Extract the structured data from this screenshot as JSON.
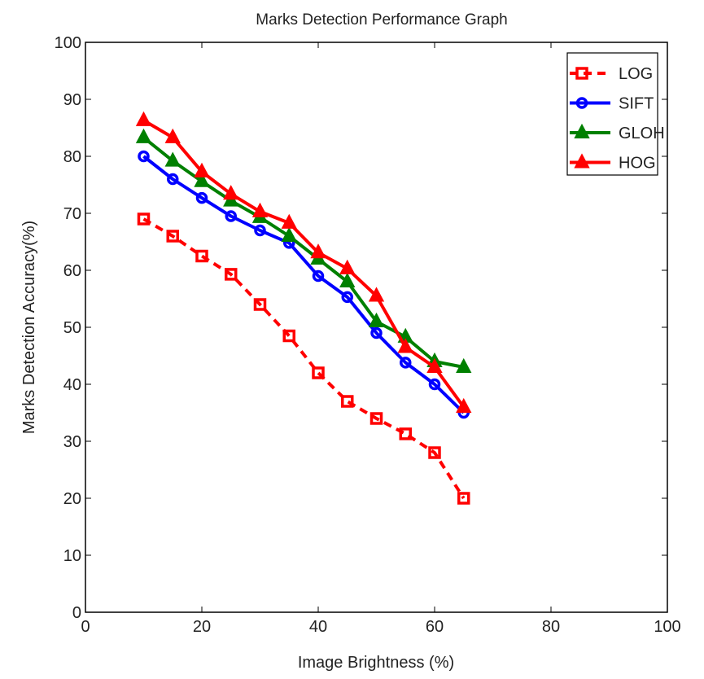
{
  "chart_data": {
    "type": "line",
    "title": "Marks Detection Performance Graph",
    "xlabel": "Image Brightness (%)",
    "ylabel": "Marks Detection Accuracy(%)",
    "xlim": [
      0,
      100
    ],
    "ylim": [
      0,
      100
    ],
    "xticks": [
      0,
      20,
      40,
      60,
      80,
      100
    ],
    "yticks": [
      0,
      10,
      20,
      30,
      40,
      50,
      60,
      70,
      80,
      90,
      100
    ],
    "grid": false,
    "legend_position": "top-right",
    "x": [
      10,
      15,
      20,
      25,
      30,
      35,
      40,
      45,
      50,
      55,
      60,
      65
    ],
    "series": [
      {
        "name": "LOG",
        "color": "#ff0000",
        "style": "dashed",
        "marker": "square",
        "values": [
          69,
          66,
          62.5,
          59.3,
          54,
          48.5,
          42,
          37,
          34,
          31.3,
          28,
          20
        ]
      },
      {
        "name": "SIFT",
        "color": "#0000ff",
        "style": "solid",
        "marker": "circle",
        "values": [
          80,
          76,
          72.7,
          69.5,
          67,
          64.8,
          59,
          55.3,
          49,
          43.8,
          40,
          35
        ]
      },
      {
        "name": "GLOH",
        "color": "#008000",
        "style": "solid",
        "marker": "triangle",
        "values": [
          83.3,
          79.2,
          75.6,
          72.2,
          69.3,
          66,
          62,
          58,
          51,
          48.3,
          44,
          43
        ]
      },
      {
        "name": "HOG",
        "color": "#ff0000",
        "style": "solid",
        "marker": "triangle",
        "values": [
          86.3,
          83.3,
          77.3,
          73.4,
          70.3,
          68.3,
          63.1,
          60.3,
          55.5,
          46.5,
          43,
          36
        ]
      }
    ]
  }
}
